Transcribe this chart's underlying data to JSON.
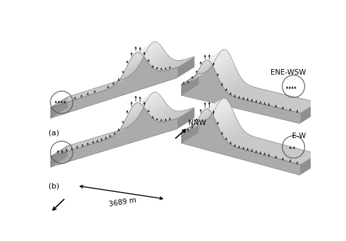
{
  "background_color": "#ffffff",
  "fig_width": 5.0,
  "fig_height": 3.49,
  "dpi": 100,
  "label_a": "(a)",
  "label_b": "(b)",
  "label_ene_wsw": "ENE-WSW",
  "label_ew": "E-W",
  "label_nnw": "NNW",
  "label_scale": "3689 m",
  "text_color": "#000000",
  "arrow_color": "#111111",
  "circle_color": "#555555",
  "color_top_light": "#e0e0e0",
  "color_top_mid": "#c8c8c8",
  "color_front_dark": "#a0a0a0",
  "color_side_dark": "#888888",
  "color_edge": "#505050"
}
